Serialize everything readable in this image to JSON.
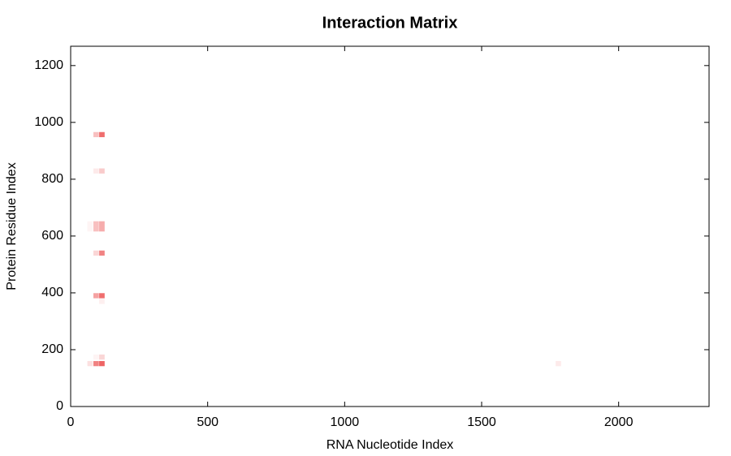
{
  "chart_data": {
    "type": "heatmap",
    "title": "Interaction Matrix",
    "x_label": "RNA Nucleotide Index",
    "y_label": "Protein Residue Index",
    "color": "#e83030",
    "xlim": [
      0,
      2330
    ],
    "ylim": [
      0,
      1268
    ],
    "xticks": [
      0,
      500,
      1000,
      1500,
      2000
    ],
    "yticks": [
      0,
      200,
      400,
      600,
      800,
      1000,
      1200
    ],
    "bin_width": 20,
    "bin_height": 18,
    "cells": {
      "x": [
        93,
        114,
        93,
        114,
        71,
        93,
        114,
        71,
        93,
        114,
        93,
        114,
        93,
        114,
        114,
        93,
        114,
        71,
        93,
        114,
        1780
      ],
      "y": [
        957,
        957,
        829,
        829,
        643,
        643,
        643,
        625,
        625,
        625,
        540,
        540,
        390,
        390,
        370,
        174,
        174,
        151,
        151,
        151,
        151
      ],
      "values": [
        0.3,
        0.7,
        0.1,
        0.25,
        0.05,
        0.3,
        0.4,
        0.05,
        0.3,
        0.4,
        0.2,
        0.6,
        0.45,
        0.7,
        0.08,
        0.05,
        0.2,
        0.15,
        0.6,
        0.75,
        0.1
      ]
    }
  }
}
